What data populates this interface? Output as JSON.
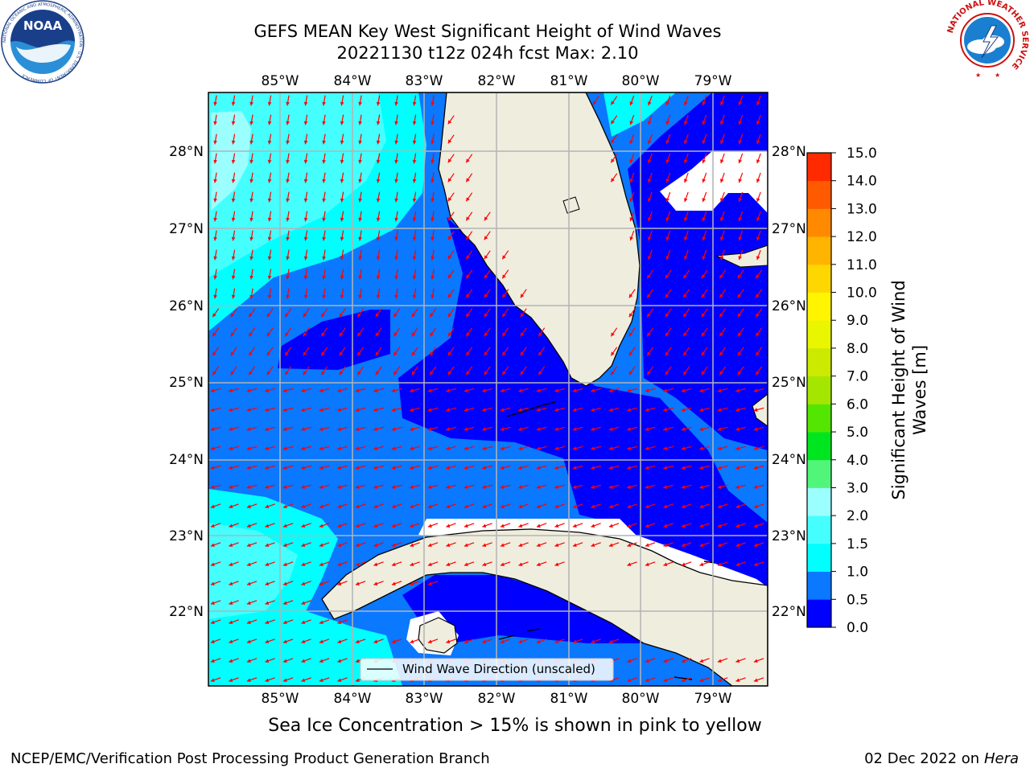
{
  "header": {
    "title_line1": "GEFS MEAN Key West Significant Height of Wind Waves",
    "title_line2": "20221130 t12z 024h fcst   Max: 2.10"
  },
  "logos": {
    "noaa_text": "NOAA",
    "noaa_ring_text": "NATIONAL OCEANIC AND ATMOSPHERIC ADMINISTRATION · U.S. DEPARTMENT OF COMMERCE",
    "nws_ring_text": "NATIONAL WEATHER SERVICE"
  },
  "map": {
    "lon_labels": [
      "85°W",
      "84°W",
      "83°W",
      "82°W",
      "81°W",
      "80°W",
      "79°W"
    ],
    "lat_labels": [
      "28°N",
      "27°N",
      "26°N",
      "25°N",
      "24°N",
      "23°N",
      "22°N"
    ],
    "legend_label": "Wind Wave Direction (unscaled)",
    "colors": {
      "land": "#efedde",
      "arrows": "#ff0000",
      "grid": "#b4b4b4",
      "coast": "#000000"
    }
  },
  "colorbar": {
    "label_line1": "Significant Height of Wind",
    "label_line2": "Waves [m]",
    "ticks": [
      "0.0",
      "0.5",
      "1.0",
      "1.5",
      "2.0",
      "3.0",
      "4.0",
      "5.0",
      "6.0",
      "7.0",
      "8.0",
      "9.0",
      "10.0",
      "11.0",
      "12.0",
      "13.0",
      "14.0",
      "15.0"
    ],
    "colors": [
      "#0000ff",
      "#0a78ff",
      "#00ffff",
      "#45ffff",
      "#9bffff",
      "#51f57a",
      "#00e61e",
      "#53e600",
      "#a5e600",
      "#ccea00",
      "#eaf500",
      "#fff500",
      "#ffd700",
      "#ffb400",
      "#ff8a00",
      "#ff5a00",
      "#ff2a00"
    ]
  },
  "caption": "Sea Ice Concentration > 15% is shown in pink to yellow",
  "footer": {
    "left": "NCEP/EMC/Verification Post Processing Product Generation Branch",
    "date": "02 Dec 2022 on",
    "machine": "Hera"
  }
}
